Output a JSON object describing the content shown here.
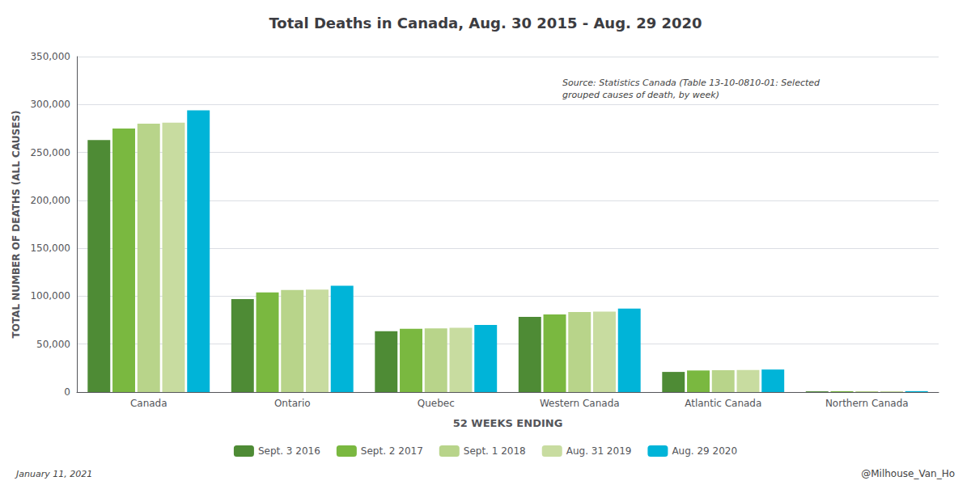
{
  "chart_data": {
    "type": "bar",
    "title": "Total Deaths in Canada, Aug. 30 2015 - Aug. 29 2020",
    "xlabel": "52 WEEKS ENDING",
    "ylabel": "TOTAL NUMBER OF DEATHS (ALL CAUSES)",
    "annotations": [
      "Source: Statistics Canada (Table 13-10-0810-01: Selected\ngrouped causes of death, by week)",
      "January 11, 2021",
      "@Milhouse_Van_Ho"
    ],
    "categories": [
      "Canada",
      "Ontario",
      "Quebec",
      "Western Canada",
      "Atlantic Canada",
      "Northern Canada"
    ],
    "series": [
      {
        "name": "Sept. 3 2016",
        "color": "#4e8b35",
        "values": [
          263000,
          97000,
          63500,
          78500,
          21000,
          750
        ]
      },
      {
        "name": "Sept. 2 2017",
        "color": "#7ab840",
        "values": [
          275000,
          104000,
          66000,
          81000,
          22500,
          850
        ]
      },
      {
        "name": "Sept. 1 2018",
        "color": "#b8d48a",
        "values": [
          280000,
          106500,
          66500,
          83500,
          22800,
          880
        ]
      },
      {
        "name": "Aug. 31 2019",
        "color": "#c8dca0",
        "values": [
          281000,
          107000,
          67000,
          84000,
          23000,
          920
        ]
      },
      {
        "name": "Aug. 29 2020",
        "color": "#00b4d8",
        "values": [
          294000,
          111000,
          70000,
          87000,
          23500,
          950
        ]
      }
    ],
    "ylim": [
      0,
      350000
    ],
    "yticks": [
      0,
      {
        "value": 50000,
        "label": "50,000"
      },
      {
        "value": 100000,
        "label": "100,000"
      },
      {
        "value": 150000,
        "label": "150,000"
      },
      {
        "value": 200000,
        "label": "200,000"
      },
      {
        "value": 250000,
        "label": "250,000"
      },
      {
        "value": 300000,
        "label": "300,000"
      },
      {
        "value": 350000,
        "label": "350,000"
      }
    ],
    "grid": true,
    "legend": "bottom"
  }
}
